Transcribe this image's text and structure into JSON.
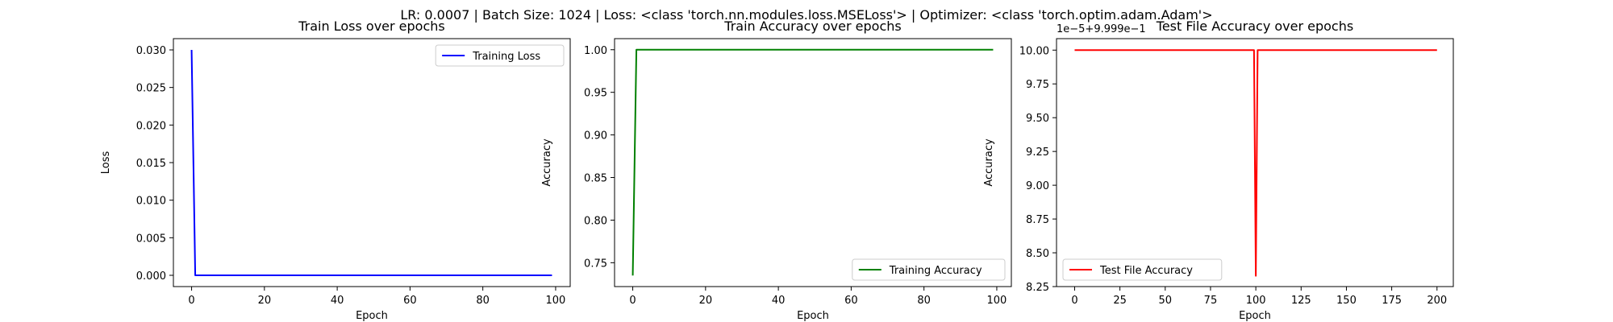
{
  "suptitle": "LR: 0.0007 | Batch Size: 1024 | Loss: <class 'torch.nn.modules.loss.MSELoss'> | Optimizer: <class 'torch.optim.adam.Adam'>",
  "chart_data": [
    {
      "type": "line",
      "title": "Train Loss over epochs",
      "xlabel": "Epoch",
      "ylabel": "Loss",
      "xlim": [
        -5,
        104
      ],
      "ylim": [
        -0.0015,
        0.0315
      ],
      "xticks": [
        0,
        20,
        40,
        60,
        80,
        100
      ],
      "xtick_labels": [
        "0",
        "20",
        "40",
        "60",
        "80",
        "100"
      ],
      "yticks": [
        0.0,
        0.005,
        0.01,
        0.015,
        0.02,
        0.025,
        0.03
      ],
      "ytick_labels": [
        "0.000",
        "0.005",
        "0.010",
        "0.015",
        "0.020",
        "0.025",
        "0.030"
      ],
      "offset_text": "",
      "grid": false,
      "legend": "upper right",
      "series": [
        {
          "name": "Training Loss",
          "color": "#0000ff",
          "x": [
            0,
            1,
            99
          ],
          "y": [
            0.03,
            0.0,
            0.0
          ]
        }
      ]
    },
    {
      "type": "line",
      "title": "Train Accuracy over epochs",
      "xlabel": "Epoch",
      "ylabel": "Accuracy",
      "xlim": [
        -5,
        104
      ],
      "ylim": [
        0.722,
        1.013
      ],
      "xticks": [
        0,
        20,
        40,
        60,
        80,
        100
      ],
      "xtick_labels": [
        "0",
        "20",
        "40",
        "60",
        "80",
        "100"
      ],
      "yticks": [
        0.75,
        0.8,
        0.85,
        0.9,
        0.95,
        1.0
      ],
      "ytick_labels": [
        "0.75",
        "0.80",
        "0.85",
        "0.90",
        "0.95",
        "1.00"
      ],
      "offset_text": "",
      "grid": false,
      "legend": "lower right",
      "series": [
        {
          "name": "Training Accuracy",
          "color": "#008000",
          "x": [
            0,
            1,
            99
          ],
          "y": [
            0.735,
            1.0,
            1.0
          ]
        }
      ]
    },
    {
      "type": "line",
      "title": "Test File Accuracy over epochs",
      "xlabel": "Epoch",
      "ylabel": "Accuracy",
      "xlim": [
        -10,
        209
      ],
      "ylim": [
        8.25,
        10.085
      ],
      "xticks": [
        0,
        25,
        50,
        75,
        100,
        125,
        150,
        175,
        200
      ],
      "xtick_labels": [
        "0",
        "25",
        "50",
        "75",
        "100",
        "125",
        "150",
        "175",
        "200"
      ],
      "yticks": [
        8.25,
        8.5,
        8.75,
        9.0,
        9.25,
        9.5,
        9.75,
        10.0
      ],
      "ytick_labels": [
        "8.25",
        "8.50",
        "8.75",
        "9.00",
        "9.25",
        "9.50",
        "9.75",
        "10.00"
      ],
      "offset_text": "1e−5+9.999e−1",
      "grid": false,
      "legend": "lower left",
      "series": [
        {
          "name": "Test File Accuracy",
          "color": "#ff0000",
          "x": [
            0,
            99,
            100,
            101,
            200
          ],
          "y": [
            10.0,
            10.0,
            8.33,
            10.0,
            10.0
          ]
        }
      ]
    }
  ]
}
